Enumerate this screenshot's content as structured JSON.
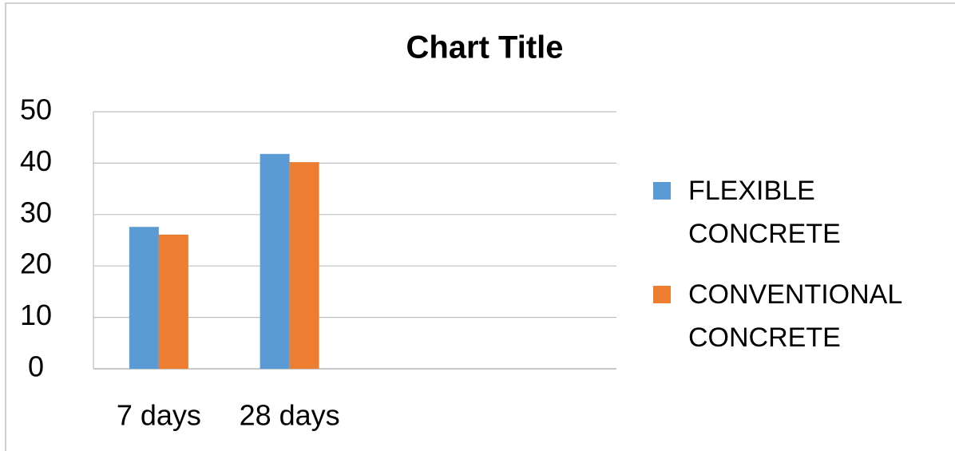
{
  "chart_data": {
    "type": "bar",
    "title": "Chart Title",
    "categories": [
      "7 days",
      "28 days",
      null,
      null
    ],
    "series": [
      {
        "name": "FLEXIBLE CONCRETE",
        "color": "#5b9bd5",
        "values": [
          27.6,
          41.8,
          null,
          null
        ]
      },
      {
        "name": "CONVENTIONAL CONCRETE",
        "color": "#ed7d31",
        "values": [
          26.1,
          40.2,
          null,
          null
        ]
      }
    ],
    "ylim": [
      0,
      50
    ],
    "yticks": [
      0,
      10,
      20,
      30,
      40,
      50
    ],
    "grid": true,
    "legend": "right"
  }
}
